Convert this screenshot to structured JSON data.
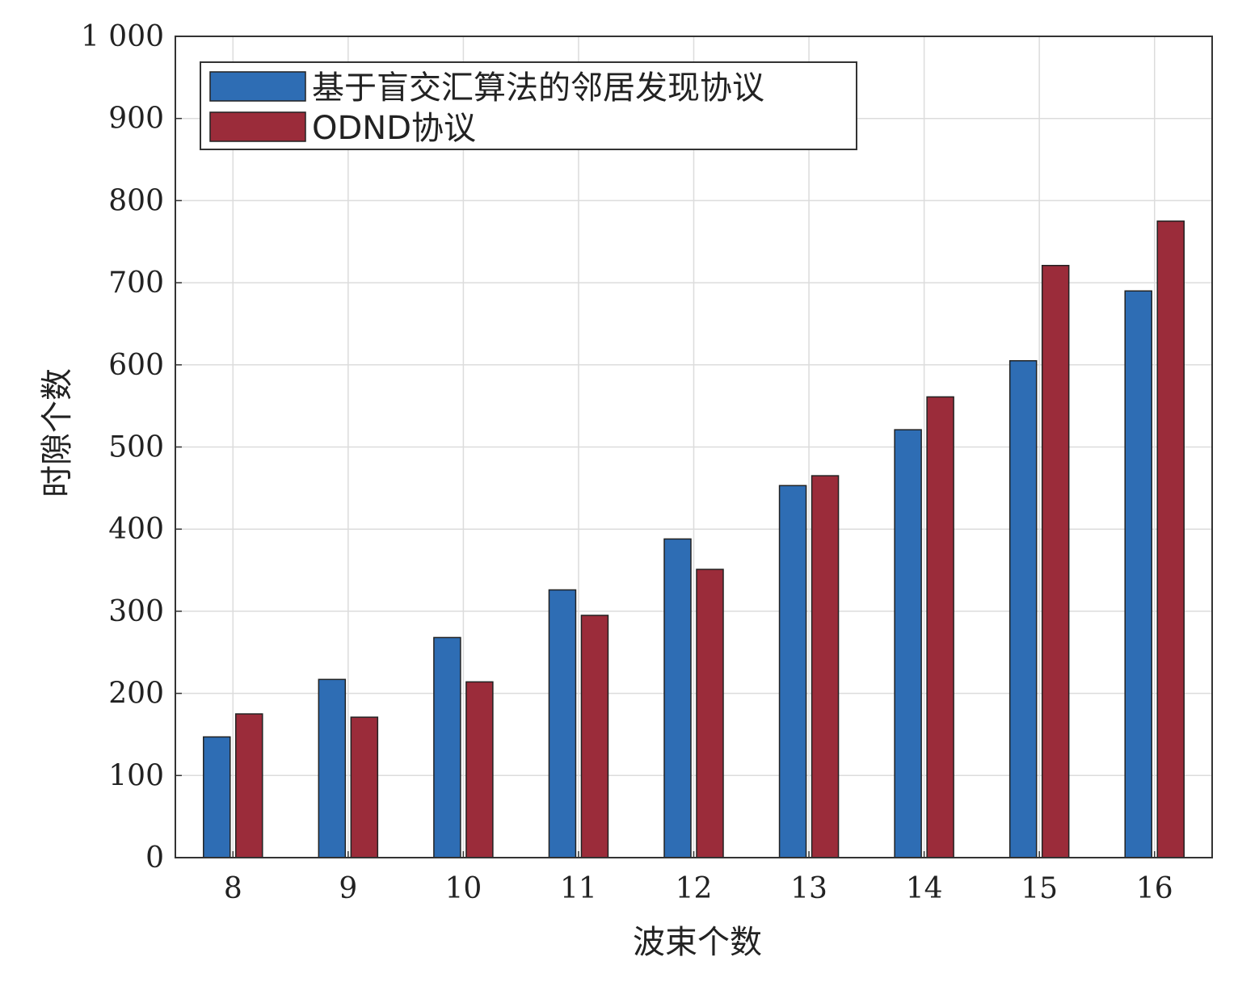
{
  "chart_data": {
    "type": "bar",
    "xlabel": "波束个数",
    "ylabel": "时隙个数",
    "categories": [
      "8",
      "9",
      "10",
      "11",
      "12",
      "13",
      "14",
      "15",
      "16"
    ],
    "series": [
      {
        "name": "基于盲交汇算法的邻居发现协议",
        "color": "#2e6db4",
        "values": [
          147,
          217,
          268,
          326,
          388,
          453,
          521,
          605,
          690
        ]
      },
      {
        "name": "ODND协议",
        "color": "#9b2c3a",
        "values": [
          175,
          171,
          214,
          295,
          351,
          465,
          561,
          721,
          775
        ]
      }
    ],
    "ylim": [
      0,
      1000
    ],
    "yticks": [
      0,
      100,
      200,
      300,
      400,
      500,
      600,
      700,
      800,
      900,
      1000
    ],
    "ytick_labels": [
      "0",
      "100",
      "200",
      "300",
      "400",
      "500",
      "600",
      "700",
      "800",
      "900",
      "1 000"
    ],
    "grid": true,
    "legend_position": "top-left"
  }
}
